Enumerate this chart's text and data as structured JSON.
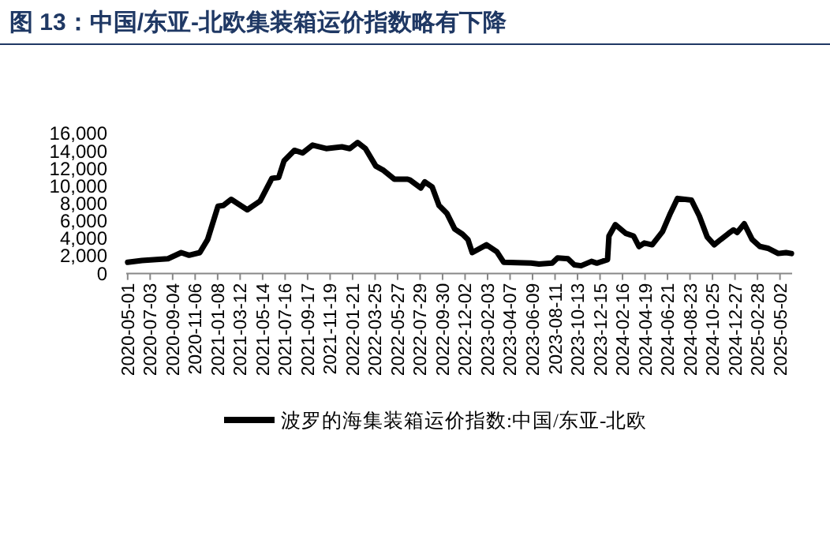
{
  "chart_data": {
    "type": "line",
    "title": "图 13：中国/东亚-北欧集装箱运价指数略有下降",
    "xlim": [
      "2020-04-27",
      "2025-06-05"
    ],
    "xticks": [
      "2020-05-01",
      "2020-07-03",
      "2020-09-04",
      "2020-11-06",
      "2021-01-08",
      "2021-03-12",
      "2021-05-14",
      "2021-07-16",
      "2021-09-17",
      "2021-11-19",
      "2022-01-21",
      "2022-03-25",
      "2022-05-27",
      "2022-07-29",
      "2022-09-30",
      "2022-12-02",
      "2023-02-03",
      "2023-04-07",
      "2023-06-09",
      "2023-08-11",
      "2023-10-13",
      "2023-12-15",
      "2024-02-16",
      "2024-04-19",
      "2024-06-21",
      "2024-08-23",
      "2024-10-25",
      "2024-12-27",
      "2025-02-28",
      "2025-05-02"
    ],
    "ylim": [
      0,
      16000
    ],
    "yticks": [
      0,
      {
        "value": 2000,
        "label": "2,000"
      },
      {
        "value": 4000,
        "label": "4,000"
      },
      {
        "value": 6000,
        "label": "6,000"
      },
      {
        "value": 8000,
        "label": "8,000"
      },
      {
        "value": 10000,
        "label": "10,000"
      },
      {
        "value": 12000,
        "label": "12,000"
      },
      {
        "value": 14000,
        "label": "14,000"
      },
      {
        "value": 16000,
        "label": "16,000"
      }
    ],
    "legend": "bottom",
    "line_style": "solid",
    "series": [
      {
        "name": "波罗的海集装箱运价指数:中国/东亚-北欧",
        "color": "#000000",
        "x": [
          "2020-05-01",
          "2020-06-10",
          "2020-08-22",
          "2020-09-28",
          "2020-10-20",
          "2020-11-19",
          "2020-12-11",
          "2021-01-09",
          "2021-01-24",
          "2021-02-15",
          "2021-04-01",
          "2021-05-07",
          "2021-06-09",
          "2021-06-28",
          "2021-07-13",
          "2021-08-11",
          "2021-09-03",
          "2021-10-01",
          "2021-11-08",
          "2021-12-22",
          "2022-01-13",
          "2022-02-04",
          "2022-02-26",
          "2022-03-27",
          "2022-04-18",
          "2022-05-18",
          "2022-06-24",
          "2022-07-01",
          "2022-07-31",
          "2022-08-11",
          "2022-09-01",
          "2022-09-20",
          "2022-10-12",
          "2022-11-03",
          "2022-11-25",
          "2022-12-10",
          "2022-12-22",
          "2023-01-31",
          "2023-03-01",
          "2023-03-20",
          "2023-06-05",
          "2023-06-27",
          "2023-08-03",
          "2023-08-18",
          "2023-09-16",
          "2023-10-04",
          "2023-10-23",
          "2023-11-21",
          "2023-12-06",
          "2024-01-05",
          "2024-01-09",
          "2024-01-27",
          "2024-02-25",
          "2024-03-18",
          "2024-04-02",
          "2024-04-17",
          "2024-05-09",
          "2024-06-07",
          "2024-06-29",
          "2024-07-19",
          "2024-08-27",
          "2024-09-18",
          "2024-10-10",
          "2024-10-30",
          "2024-11-17",
          "2024-12-09",
          "2024-12-23",
          "2025-01-02",
          "2025-01-22",
          "2025-02-13",
          "2025-03-07",
          "2025-03-29",
          "2025-04-27",
          "2025-05-19",
          "2025-06-03"
        ],
        "values": [
          1300,
          1500,
          1700,
          2400,
          2100,
          2400,
          3900,
          7700,
          7800,
          8500,
          7300,
          8300,
          10900,
          11000,
          12900,
          14100,
          13800,
          14700,
          14300,
          14500,
          14300,
          15000,
          14300,
          12300,
          11800,
          10800,
          10800,
          10700,
          9800,
          10500,
          9900,
          7800,
          6900,
          5100,
          4500,
          3900,
          2400,
          3300,
          2500,
          1300,
          1200,
          1100,
          1200,
          1800,
          1700,
          1000,
          900,
          1400,
          1200,
          1600,
          4300,
          5600,
          4600,
          4300,
          3100,
          3500,
          3300,
          4800,
          6900,
          8600,
          8400,
          6600,
          4200,
          3300,
          3900,
          4600,
          5000,
          4700,
          5700,
          3900,
          3100,
          2900,
          2300,
          2400,
          2300
        ]
      }
    ]
  }
}
